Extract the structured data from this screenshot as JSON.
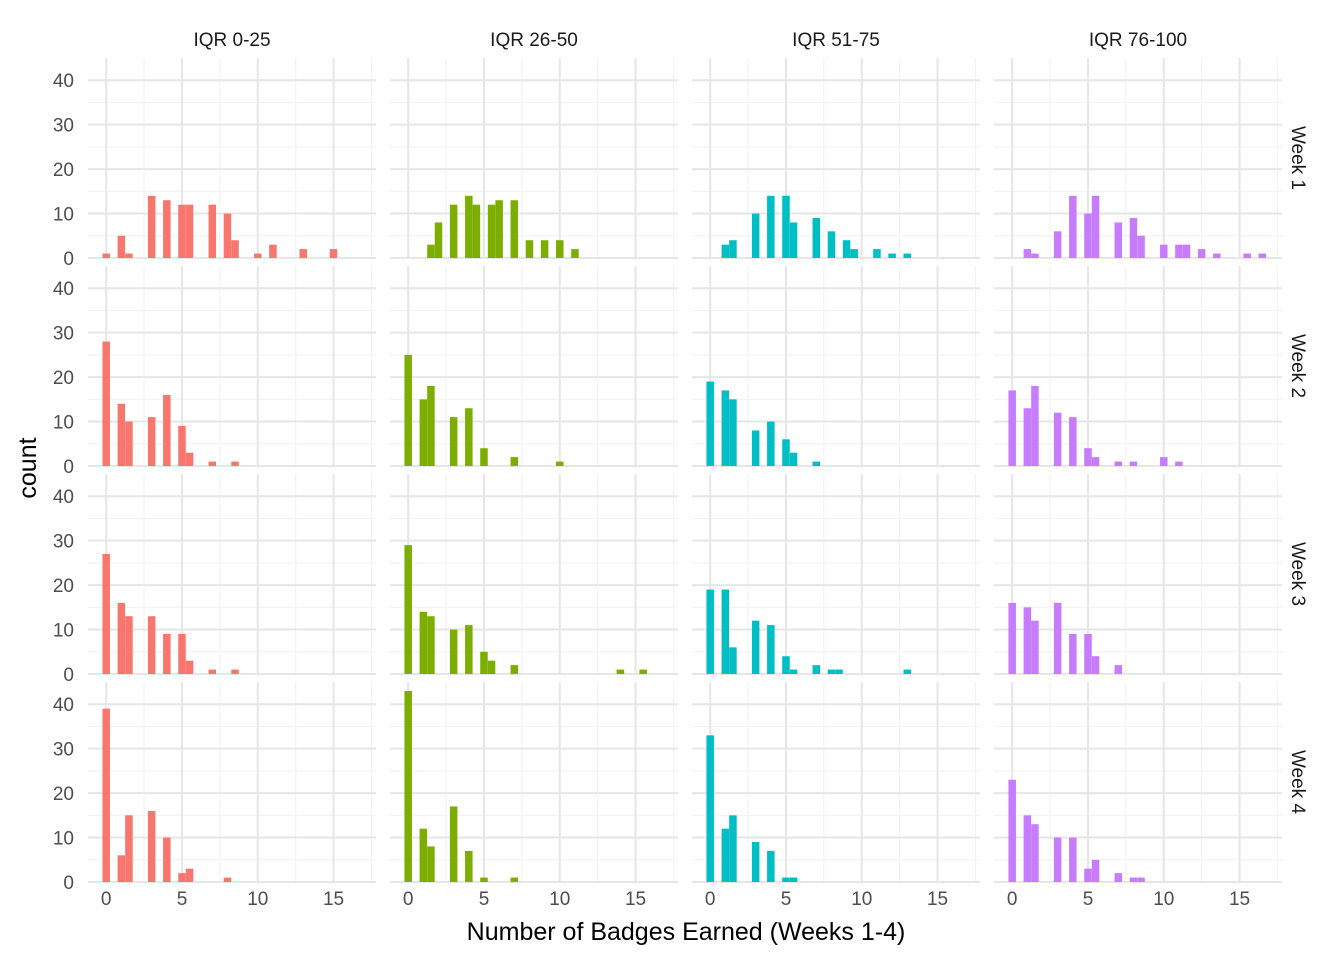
{
  "chart_data": {
    "type": "bar",
    "facet_layout": "grid",
    "xlabel": "Number of Badges Earned (Weeks 1-4)",
    "ylabel": "count",
    "xlim": [
      -1.2,
      17.8
    ],
    "ylim": [
      0,
      45
    ],
    "x_ticks": [
      0,
      5,
      10,
      15
    ],
    "y_ticks": [
      0,
      10,
      20,
      30,
      40
    ],
    "grid": true,
    "legend": "none",
    "column_labels": [
      "IQR 0-25",
      "IQR 26-50",
      "IQR 51-75",
      "IQR 76-100"
    ],
    "row_labels": [
      "Week 1",
      "Week 2",
      "Week 3",
      "Week 4"
    ],
    "colors": [
      "#F8766D",
      "#7CAE00",
      "#00BFC4",
      "#C77CFF"
    ],
    "panels": [
      [
        {
          "x": [
            0,
            1,
            1.5,
            3,
            4,
            5,
            5.5,
            7,
            8,
            8.5,
            10,
            11,
            13,
            15
          ],
          "y": [
            1,
            5,
            1,
            14,
            13,
            12,
            12,
            12,
            10,
            4,
            1,
            3,
            2,
            2
          ]
        },
        {
          "x": [
            1.5,
            2,
            3,
            4,
            4.5,
            5.5,
            6,
            7,
            8,
            9,
            10,
            11
          ],
          "y": [
            3,
            8,
            12,
            14,
            12,
            12,
            13,
            13,
            4,
            4,
            4,
            2
          ]
        },
        {
          "x": [
            1,
            1.5,
            3,
            4,
            5,
            5.5,
            7,
            8,
            9,
            9.5,
            11,
            12,
            13
          ],
          "y": [
            3,
            4,
            10,
            14,
            14,
            8,
            9,
            6,
            4,
            2,
            2,
            1,
            1
          ]
        },
        {
          "x": [
            1,
            1.5,
            3,
            4,
            5,
            5.5,
            7,
            8,
            8.5,
            10,
            11,
            11.5,
            12.5,
            13.5,
            15.5,
            16.5
          ],
          "y": [
            2,
            1,
            6,
            14,
            10,
            14,
            8,
            9,
            5,
            3,
            3,
            3,
            2,
            1,
            1,
            1
          ]
        }
      ],
      [
        {
          "x": [
            0,
            1,
            1.5,
            3,
            4,
            5,
            5.5,
            7,
            8.5
          ],
          "y": [
            28,
            14,
            10,
            11,
            16,
            9,
            3,
            1,
            1
          ]
        },
        {
          "x": [
            0,
            1,
            1.5,
            3,
            4,
            5,
            7,
            10
          ],
          "y": [
            25,
            15,
            18,
            11,
            13,
            4,
            2,
            1
          ]
        },
        {
          "x": [
            0,
            1,
            1.5,
            3,
            4,
            5,
            5.5,
            7
          ],
          "y": [
            19,
            17,
            15,
            8,
            10,
            6,
            3,
            1
          ]
        },
        {
          "x": [
            0,
            1,
            1.5,
            3,
            4,
            5,
            5.5,
            7,
            8,
            10,
            11
          ],
          "y": [
            17,
            13,
            18,
            12,
            11,
            4,
            2,
            1,
            1,
            2,
            1
          ]
        }
      ],
      [
        {
          "x": [
            0,
            1,
            1.5,
            3,
            4,
            5,
            5.5,
            7,
            8.5
          ],
          "y": [
            27,
            16,
            13,
            13,
            9,
            9,
            3,
            1,
            1
          ]
        },
        {
          "x": [
            0,
            1,
            1.5,
            3,
            4,
            5,
            5.5,
            7,
            14,
            15.5
          ],
          "y": [
            29,
            14,
            13,
            10,
            11,
            5,
            3,
            2,
            1,
            1
          ]
        },
        {
          "x": [
            0,
            1,
            1.5,
            3,
            4,
            5,
            5.5,
            7,
            8,
            8.5,
            13
          ],
          "y": [
            19,
            19,
            6,
            12,
            11,
            4,
            1,
            2,
            1,
            1,
            1
          ]
        },
        {
          "x": [
            0,
            1,
            1.5,
            3,
            4,
            5,
            5.5,
            7
          ],
          "y": [
            16,
            15,
            12,
            16,
            9,
            9,
            4,
            2
          ]
        }
      ],
      [
        {
          "x": [
            0,
            1,
            1.5,
            3,
            4,
            5,
            5.5,
            8
          ],
          "y": [
            39,
            6,
            15,
            16,
            10,
            2,
            3,
            1
          ]
        },
        {
          "x": [
            0,
            1,
            1.5,
            3,
            4,
            5,
            7
          ],
          "y": [
            43,
            12,
            8,
            17,
            7,
            1,
            1
          ]
        },
        {
          "x": [
            0,
            1,
            1.5,
            3,
            4,
            5,
            5.5
          ],
          "y": [
            33,
            12,
            15,
            9,
            7,
            1,
            1
          ]
        },
        {
          "x": [
            0,
            1,
            1.5,
            3,
            4,
            5,
            5.5,
            7,
            8,
            8.5
          ],
          "y": [
            23,
            15,
            13,
            10,
            10,
            3,
            5,
            2,
            1,
            1
          ]
        }
      ]
    ]
  }
}
